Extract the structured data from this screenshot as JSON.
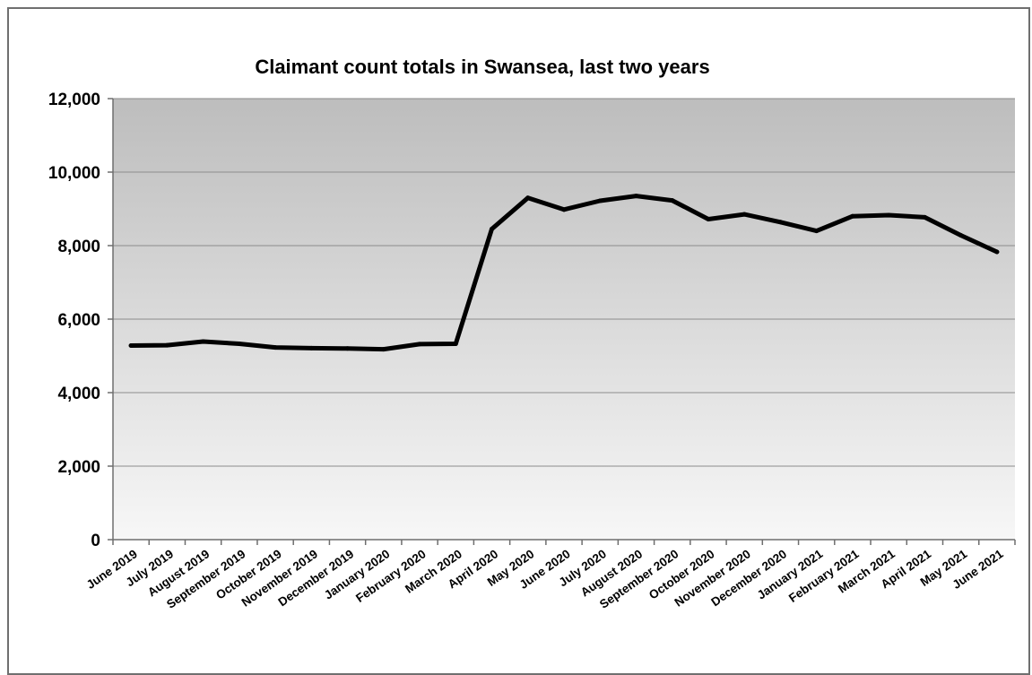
{
  "chart_data": {
    "type": "line",
    "title": "Claimant count totals in Swansea, last two years",
    "xlabel": "",
    "ylabel": "",
    "ylim": [
      0,
      12000
    ],
    "y_ticks": [
      "0",
      "2,000",
      "4,000",
      "6,000",
      "8,000",
      "10,000",
      "12,000"
    ],
    "y_tick_values": [
      0,
      2000,
      4000,
      6000,
      8000,
      10000,
      12000
    ],
    "grid": true,
    "legend": "none",
    "categories": [
      "June 2019",
      "July 2019",
      "August 2019",
      "September 2019",
      "October 2019",
      "November 2019",
      "December 2019",
      "January 2020",
      "February 2020",
      "March 2020",
      "April 2020",
      "May 2020",
      "June 2020",
      "July 2020",
      "August 2020",
      "September 2020",
      "October 2020",
      "November 2020",
      "December 2020",
      "January 2021",
      "February 2021",
      "March 2021",
      "April 2021",
      "May 2021",
      "June 2021"
    ],
    "series": [
      {
        "values": [
          5280,
          5290,
          5390,
          5330,
          5230,
          5210,
          5200,
          5180,
          5320,
          5330,
          8450,
          9300,
          8980,
          9220,
          9350,
          9230,
          8720,
          8850,
          8640,
          8400,
          8800,
          8830,
          8770,
          8280,
          7830
        ]
      }
    ],
    "colors": {
      "line": "#000000",
      "plot_bg_top": "#bdbdbd",
      "plot_bg_bottom": "#f7f7f7",
      "gridline": "#8c8c8c",
      "axis": "#6e6e6e",
      "frame": "#6f6f6f"
    }
  }
}
